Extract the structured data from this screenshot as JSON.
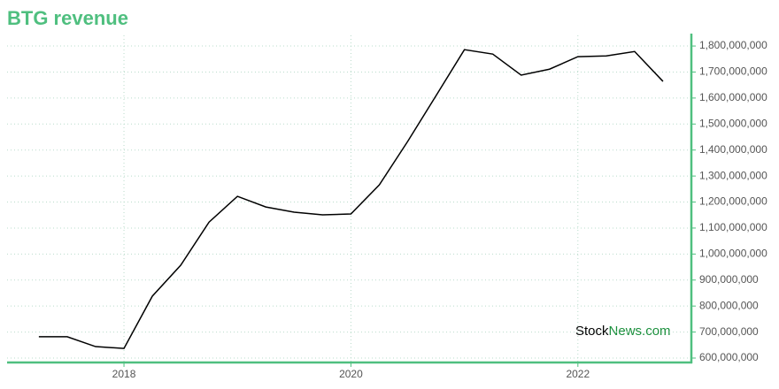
{
  "chart_data": {
    "type": "line",
    "title": "BTG revenue",
    "x": [
      2017.25,
      2017.5,
      2017.75,
      2018,
      2018.25,
      2018.5,
      2018.75,
      2019,
      2019.25,
      2019.5,
      2019.75,
      2020,
      2020.25,
      2020.5,
      2020.75,
      2021,
      2021.25,
      2021.5,
      2021.75,
      2022,
      2022.25,
      2022.5,
      2022.75
    ],
    "values": [
      682000000,
      682000000,
      644000000,
      637000000,
      838000000,
      957000000,
      1123000000,
      1222000000,
      1181000000,
      1161000000,
      1151000000,
      1154000000,
      1266000000,
      1433000000,
      1609000000,
      1786000000,
      1769000000,
      1688000000,
      1711000000,
      1759000000,
      1762000000,
      1779000000,
      1664000000
    ],
    "color": "#000000",
    "xlim": [
      2016.97,
      2023.0
    ],
    "xticks": [
      2018,
      2020,
      2022
    ],
    "ylim": [
      583000000,
      1841000000
    ],
    "yticks": [
      {
        "value": 600000000,
        "label": "600,000,000"
      },
      {
        "value": 700000000,
        "label": "700,000,000"
      },
      {
        "value": 800000000,
        "label": "800,000,000"
      },
      {
        "value": 900000000,
        "label": "900,000,000"
      },
      {
        "value": 1000000000,
        "label": "1,000,000,000"
      },
      {
        "value": 1100000000,
        "label": "1,100,000,000"
      },
      {
        "value": 1200000000,
        "label": "1,200,000,000"
      },
      {
        "value": 1300000000,
        "label": "1,300,000,000"
      },
      {
        "value": 1400000000,
        "label": "1,400,000,000"
      },
      {
        "value": 1500000000,
        "label": "1,500,000,000"
      },
      {
        "value": 1600000000,
        "label": "1,600,000,000"
      },
      {
        "value": 1700000000,
        "label": "1,700,000,000"
      },
      {
        "value": 1800000000,
        "label": "1,800,000,000"
      }
    ],
    "grid": true,
    "axis_color": "#4fbf7f",
    "watermark": {
      "part1": "Stock",
      "part2": "News.com"
    }
  }
}
